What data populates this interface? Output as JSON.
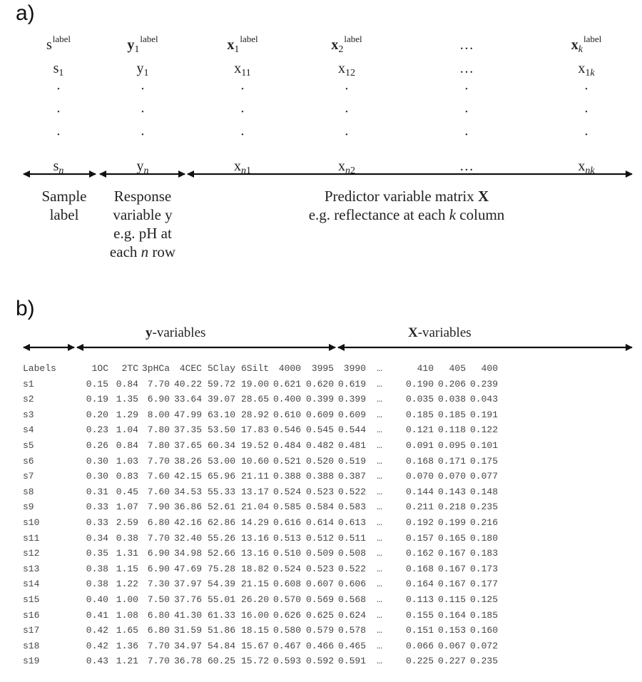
{
  "panel_a": {
    "label": "a)",
    "columns": [
      {
        "key": "s",
        "header_main": "s",
        "header_sub": "",
        "header_sup": "label",
        "bold": false,
        "row1_main": "s",
        "row1_sub": "1",
        "rown_main": "s",
        "rown_sub": "n",
        "rown_sub_tail": ""
      },
      {
        "key": "y1",
        "header_main": "y",
        "header_sub": "1",
        "header_sup": "label",
        "bold": true,
        "row1_main": "y",
        "row1_sub": "1",
        "rown_main": "y",
        "rown_sub": "n",
        "rown_sub_tail": ""
      },
      {
        "key": "x1",
        "header_main": "x",
        "header_sub": "1",
        "header_sup": "label",
        "bold": true,
        "row1_main": "x",
        "row1_sub": "11",
        "rown_main": "x",
        "rown_sub": "n",
        "rown_sub_tail": "1"
      },
      {
        "key": "x2",
        "header_main": "x",
        "header_sub": "2",
        "header_sup": "label",
        "bold": true,
        "row1_main": "x",
        "row1_sub": "12",
        "rown_main": "x",
        "rown_sub": "n",
        "rown_sub_tail": "2"
      },
      {
        "key": "dots",
        "header_main": "…",
        "row1_main": "…",
        "rown_main": "…"
      },
      {
        "key": "xk",
        "header_main": "x",
        "header_sub": "k",
        "header_sup": "label",
        "bold": true,
        "row1_main": "x",
        "row1_sub": "1",
        "row1_sub_it": "k",
        "rown_main": "x",
        "rown_sub": "nk",
        "rown_sub_tail": ""
      }
    ],
    "vertical_dots": "·",
    "descriptions": {
      "sample_label": [
        "Sample",
        "label"
      ],
      "response": [
        "Response",
        "variable y",
        "e.g. pH at",
        "each n row"
      ],
      "predictor_line1": "Predictor variable matrix ",
      "predictor_bold": "X",
      "predictor_line2_pre": "e.g. reflectance at each ",
      "predictor_line2_it": "k",
      "predictor_line2_post": " column"
    }
  },
  "panel_b": {
    "label": "b)",
    "y_variables_bold": "y",
    "y_variables_rest": "-variables",
    "x_variables_bold": "X",
    "x_variables_rest": "-variables",
    "columns": [
      "Labels",
      "1OC",
      "2TC",
      "3pHCa",
      "4CEC",
      "5Clay",
      "6Silt",
      "4000",
      "3995",
      "3990",
      "…",
      "410",
      "405",
      "400"
    ],
    "rows": [
      [
        "s1",
        "0.15",
        "0.84",
        "7.70",
        "40.22",
        "59.72",
        "19.00",
        "0.621",
        "0.620",
        "0.619",
        "…",
        "0.190",
        "0.206",
        "0.239"
      ],
      [
        "s2",
        "0.19",
        "1.35",
        "6.90",
        "33.64",
        "39.07",
        "28.65",
        "0.400",
        "0.399",
        "0.399",
        "…",
        "0.035",
        "0.038",
        "0.043"
      ],
      [
        "s3",
        "0.20",
        "1.29",
        "8.00",
        "47.99",
        "63.10",
        "28.92",
        "0.610",
        "0.609",
        "0.609",
        "…",
        "0.185",
        "0.185",
        "0.191"
      ],
      [
        "s4",
        "0.23",
        "1.04",
        "7.80",
        "37.35",
        "53.50",
        "17.83",
        "0.546",
        "0.545",
        "0.544",
        "…",
        "0.121",
        "0.118",
        "0.122"
      ],
      [
        "s5",
        "0.26",
        "0.84",
        "7.80",
        "37.65",
        "60.34",
        "19.52",
        "0.484",
        "0.482",
        "0.481",
        "…",
        "0.091",
        "0.095",
        "0.101"
      ],
      [
        "s6",
        "0.30",
        "1.03",
        "7.70",
        "38.26",
        "53.00",
        "10.60",
        "0.521",
        "0.520",
        "0.519",
        "…",
        "0.168",
        "0.171",
        "0.175"
      ],
      [
        "s7",
        "0.30",
        "0.83",
        "7.60",
        "42.15",
        "65.96",
        "21.11",
        "0.388",
        "0.388",
        "0.387",
        "…",
        "0.070",
        "0.070",
        "0.077"
      ],
      [
        "s8",
        "0.31",
        "0.45",
        "7.60",
        "34.53",
        "55.33",
        "13.17",
        "0.524",
        "0.523",
        "0.522",
        "…",
        "0.144",
        "0.143",
        "0.148"
      ],
      [
        "s9",
        "0.33",
        "1.07",
        "7.90",
        "36.86",
        "52.61",
        "21.04",
        "0.585",
        "0.584",
        "0.583",
        "…",
        "0.211",
        "0.218",
        "0.235"
      ],
      [
        "s10",
        "0.33",
        "2.59",
        "6.80",
        "42.16",
        "62.86",
        "14.29",
        "0.616",
        "0.614",
        "0.613",
        "…",
        "0.192",
        "0.199",
        "0.216"
      ],
      [
        "s11",
        "0.34",
        "0.38",
        "7.70",
        "32.40",
        "55.26",
        "13.16",
        "0.513",
        "0.512",
        "0.511",
        "…",
        "0.157",
        "0.165",
        "0.180"
      ],
      [
        "s12",
        "0.35",
        "1.31",
        "6.90",
        "34.98",
        "52.66",
        "13.16",
        "0.510",
        "0.509",
        "0.508",
        "…",
        "0.162",
        "0.167",
        "0.183"
      ],
      [
        "s13",
        "0.38",
        "1.15",
        "6.90",
        "47.69",
        "75.28",
        "18.82",
        "0.524",
        "0.523",
        "0.522",
        "…",
        "0.168",
        "0.167",
        "0.173"
      ],
      [
        "s14",
        "0.38",
        "1.22",
        "7.30",
        "37.97",
        "54.39",
        "21.15",
        "0.608",
        "0.607",
        "0.606",
        "…",
        "0.164",
        "0.167",
        "0.177"
      ],
      [
        "s15",
        "0.40",
        "1.00",
        "7.50",
        "37.76",
        "55.01",
        "26.20",
        "0.570",
        "0.569",
        "0.568",
        "…",
        "0.113",
        "0.115",
        "0.125"
      ],
      [
        "s16",
        "0.41",
        "1.08",
        "6.80",
        "41.30",
        "61.33",
        "16.00",
        "0.626",
        "0.625",
        "0.624",
        "…",
        "0.155",
        "0.164",
        "0.185"
      ],
      [
        "s17",
        "0.42",
        "1.65",
        "6.80",
        "31.59",
        "51.86",
        "18.15",
        "0.580",
        "0.579",
        "0.578",
        "…",
        "0.151",
        "0.153",
        "0.160"
      ],
      [
        "s18",
        "0.42",
        "1.36",
        "7.70",
        "34.97",
        "54.84",
        "15.67",
        "0.467",
        "0.466",
        "0.465",
        "…",
        "0.066",
        "0.067",
        "0.072"
      ],
      [
        "s19",
        "0.43",
        "1.21",
        "7.70",
        "36.78",
        "60.25",
        "15.72",
        "0.593",
        "0.592",
        "0.591",
        "…",
        "0.225",
        "0.227",
        "0.235"
      ]
    ]
  },
  "chart_data": {
    "type": "table",
    "title": "Data matrix layout: sample labels, response y-variables and predictor X-variables",
    "columns": [
      "Labels",
      "1OC",
      "2TC",
      "3pHCa",
      "4CEC",
      "5Clay",
      "6Silt",
      "4000",
      "3995",
      "3990",
      "…",
      "410",
      "405",
      "400"
    ],
    "groups": {
      "labels": [
        "Labels"
      ],
      "y-variables": [
        "1OC",
        "2TC",
        "3pHCa",
        "4CEC",
        "5Clay",
        "6Silt"
      ],
      "X-variables": [
        "4000",
        "3995",
        "3990",
        "…",
        "410",
        "405",
        "400"
      ]
    },
    "row_count_shown": 19
  },
  "colors": {
    "text": "#222222",
    "table_text": "#444444",
    "arrow": "#111111",
    "background": "#ffffff"
  }
}
